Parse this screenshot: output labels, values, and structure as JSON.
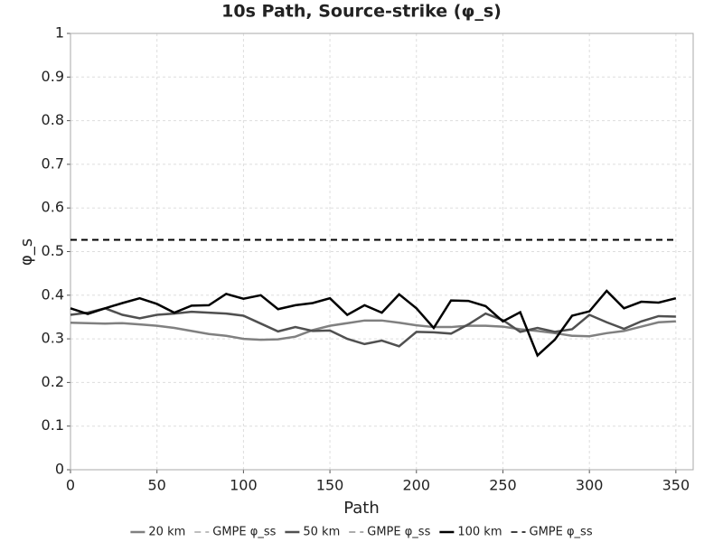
{
  "chart_data": {
    "type": "line",
    "title": "10s Path, Source-strike (φ_s)",
    "x_label": "Path",
    "y_label": "φ_s",
    "x": [
      0,
      10,
      20,
      30,
      40,
      50,
      60,
      70,
      80,
      90,
      100,
      110,
      120,
      130,
      140,
      150,
      160,
      170,
      180,
      190,
      200,
      210,
      220,
      230,
      240,
      250,
      260,
      270,
      280,
      290,
      300,
      310,
      320,
      330,
      340,
      350
    ],
    "series": [
      {
        "name": "20 km",
        "color": "#808080",
        "values": [
          0.337,
          0.336,
          0.335,
          0.336,
          0.333,
          0.33,
          0.325,
          0.318,
          0.311,
          0.307,
          0.3,
          0.298,
          0.299,
          0.305,
          0.32,
          0.33,
          0.336,
          0.342,
          0.342,
          0.337,
          0.331,
          0.327,
          0.327,
          0.33,
          0.33,
          0.328,
          0.322,
          0.318,
          0.313,
          0.307,
          0.306,
          0.313,
          0.318,
          0.328,
          0.338,
          0.34
        ]
      },
      {
        "name": "GMPE φ_ss",
        "color": "#a8a8a8",
        "dashed": true,
        "x": [
          0,
          350
        ],
        "values": [
          0.527,
          0.527
        ]
      },
      {
        "name": "50 km",
        "color": "#505050",
        "values": [
          0.355,
          0.36,
          0.37,
          0.355,
          0.347,
          0.355,
          0.358,
          0.362,
          0.36,
          0.358,
          0.353,
          0.335,
          0.317,
          0.327,
          0.318,
          0.319,
          0.3,
          0.288,
          0.296,
          0.283,
          0.316,
          0.315,
          0.312,
          0.333,
          0.358,
          0.343,
          0.316,
          0.325,
          0.316,
          0.322,
          0.355,
          0.338,
          0.323,
          0.34,
          0.352,
          0.351
        ]
      },
      {
        "name": "GMPE φ_ss",
        "color": "#909090",
        "dashed": true,
        "x": [
          0,
          350
        ],
        "values": [
          0.527,
          0.527
        ]
      },
      {
        "name": "100 km",
        "color": "#000000",
        "values": [
          0.37,
          0.357,
          0.37,
          0.382,
          0.393,
          0.38,
          0.36,
          0.376,
          0.377,
          0.403,
          0.392,
          0.4,
          0.368,
          0.377,
          0.382,
          0.393,
          0.355,
          0.377,
          0.36,
          0.402,
          0.37,
          0.325,
          0.388,
          0.387,
          0.375,
          0.34,
          0.361,
          0.262,
          0.298,
          0.353,
          0.363,
          0.41,
          0.37,
          0.385,
          0.383,
          0.393
        ]
      },
      {
        "name": "GMPE φ_ss",
        "color": "#000000",
        "dashed": true,
        "x": [
          0,
          350
        ],
        "values": [
          0.527,
          0.527
        ]
      }
    ],
    "xlim": [
      0,
      360
    ],
    "xticks": [
      0,
      50,
      100,
      150,
      200,
      250,
      300,
      350
    ],
    "ylim": [
      0,
      1
    ],
    "yticks": [
      0,
      0.1,
      0.2,
      0.3,
      0.4,
      0.5,
      0.6,
      0.7,
      0.8,
      0.9,
      1
    ],
    "grid": true,
    "legend": "bottom"
  }
}
